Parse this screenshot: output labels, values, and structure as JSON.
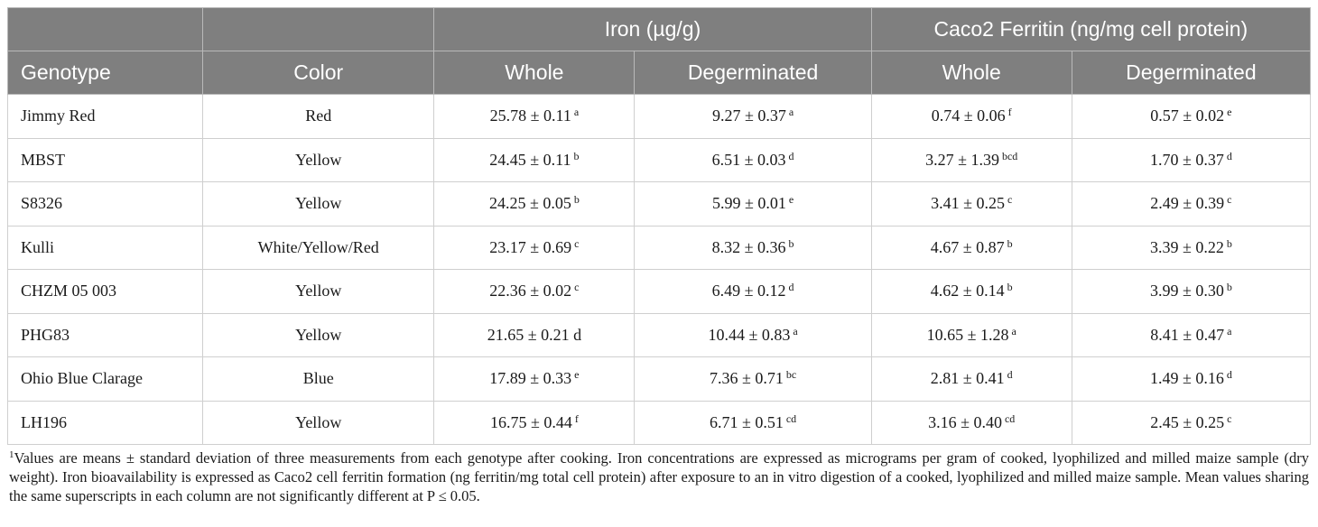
{
  "header": {
    "group_iron": "Iron (µg/g)",
    "group_ferritin": "Caco2 Ferritin (ng/mg cell protein)",
    "genotype": "Genotype",
    "color": "Color",
    "iron_whole": "Whole",
    "iron_degerminated": "Degerminated",
    "ferritin_whole": "Whole",
    "ferritin_degerminated": "Degerminated"
  },
  "rows": [
    {
      "genotype": "Jimmy Red",
      "color": "Red",
      "iron_whole": "25.78 ± 0.11",
      "iron_whole_sup": "a",
      "iron_deg": "9.27 ± 0.37",
      "iron_deg_sup": "a",
      "fer_whole": "0.74 ± 0.06",
      "fer_whole_sup": "f",
      "fer_deg": "0.57 ± 0.02",
      "fer_deg_sup": "e"
    },
    {
      "genotype": "MBST",
      "color": "Yellow",
      "iron_whole": "24.45 ± 0.11",
      "iron_whole_sup": "b",
      "iron_deg": "6.51 ± 0.03",
      "iron_deg_sup": "d",
      "fer_whole": "3.27 ± 1.39",
      "fer_whole_sup": "bcd",
      "fer_deg": "1.70 ± 0.37",
      "fer_deg_sup": "d"
    },
    {
      "genotype": "S8326",
      "color": "Yellow",
      "iron_whole": "24.25 ± 0.05",
      "iron_whole_sup": "b",
      "iron_deg": "5.99 ± 0.01",
      "iron_deg_sup": "e",
      "fer_whole": "3.41 ± 0.25",
      "fer_whole_sup": "c",
      "fer_deg": "2.49 ± 0.39",
      "fer_deg_sup": "c"
    },
    {
      "genotype": "Kulli",
      "color": "White/Yellow/Red",
      "iron_whole": "23.17 ± 0.69",
      "iron_whole_sup": "c",
      "iron_deg": "8.32 ± 0.36",
      "iron_deg_sup": "b",
      "fer_whole": "4.67 ± 0.87",
      "fer_whole_sup": "b",
      "fer_deg": "3.39 ± 0.22",
      "fer_deg_sup": "b"
    },
    {
      "genotype": "CHZM 05 003",
      "color": "Yellow",
      "iron_whole": "22.36 ± 0.02",
      "iron_whole_sup": "c",
      "iron_deg": "6.49 ± 0.12",
      "iron_deg_sup": "d",
      "fer_whole": "4.62 ± 0.14",
      "fer_whole_sup": "b",
      "fer_deg": "3.99 ± 0.30",
      "fer_deg_sup": "b"
    },
    {
      "genotype": "PHG83",
      "color": "Yellow",
      "iron_whole": "21.65 ± 0.21 d",
      "iron_whole_sup": "",
      "iron_deg": "10.44 ± 0.83",
      "iron_deg_sup": "a",
      "fer_whole": "10.65 ± 1.28",
      "fer_whole_sup": "a",
      "fer_deg": "8.41 ± 0.47",
      "fer_deg_sup": "a"
    },
    {
      "genotype": "Ohio Blue Clarage",
      "color": "Blue",
      "iron_whole": "17.89 ± 0.33",
      "iron_whole_sup": "e",
      "iron_deg": "7.36 ± 0.71",
      "iron_deg_sup": "bc",
      "fer_whole": "2.81 ± 0.41",
      "fer_whole_sup": "d",
      "fer_deg": "1.49 ± 0.16",
      "fer_deg_sup": "d"
    },
    {
      "genotype": "LH196",
      "color": "Yellow",
      "iron_whole": "16.75 ± 0.44",
      "iron_whole_sup": "f",
      "iron_deg": "6.71 ± 0.51",
      "iron_deg_sup": "cd",
      "fer_whole": "3.16 ± 0.40",
      "fer_whole_sup": "cd",
      "fer_deg": "2.45 ± 0.25",
      "fer_deg_sup": "c"
    }
  ],
  "footnote": {
    "marker": "1",
    "text": "Values are means ± standard deviation of three measurements from each genotype after cooking. Iron concentrations are expressed as micrograms per gram of cooked, lyophilized and milled maize sample (dry weight). Iron bioavailability is expressed as Caco2 cell ferritin formation (ng ferritin/mg total cell protein) after exposure to an in vitro digestion of a cooked, lyophilized and milled maize sample. Mean values sharing the same superscripts in each column are not significantly different at P ≤ 0.05."
  },
  "colors": {
    "header_bg": "#7f7f7f",
    "header_text": "#ffffff",
    "border": "#cfcfcf"
  }
}
